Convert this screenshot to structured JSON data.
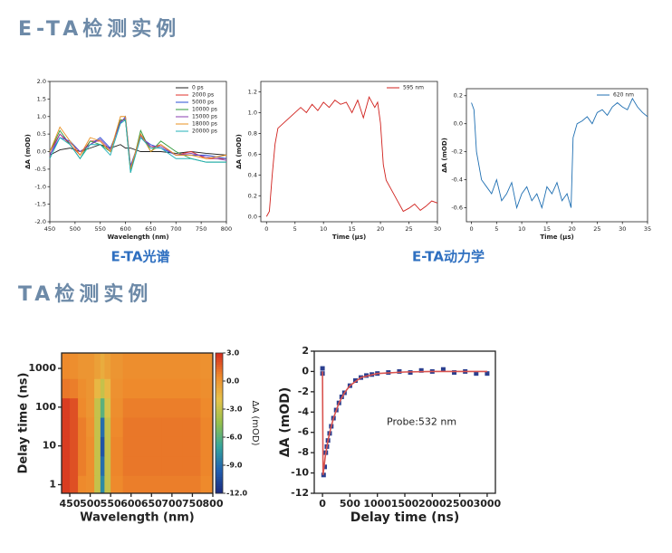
{
  "headings": [
    "E-TA检测实例",
    "TA检测实例"
  ],
  "captions": [
    "E-TA光谱",
    "E-TA动力学"
  ],
  "chart_data": [
    {
      "type": "line",
      "xlabel": "Wavelength (nm)",
      "ylabel": "ΔA (mOD)",
      "legend": "upper right",
      "xlim": [
        450,
        800
      ],
      "xticks": [
        450,
        500,
        550,
        600,
        650,
        700,
        750,
        800
      ],
      "ylim": [
        -2,
        2
      ],
      "yticks": [
        {
          "value": -2,
          "label": "-2.0"
        },
        -1.5,
        {
          "value": -1,
          "label": "-1.0"
        },
        -0.5,
        {
          "value": 0,
          "label": "0.0"
        },
        0.5,
        {
          "value": 1,
          "label": "1.0"
        },
        1.5,
        {
          "value": 2,
          "label": "2.0"
        }
      ],
      "x": [
        450,
        470,
        490,
        510,
        530,
        550,
        570,
        590,
        600,
        610,
        630,
        650,
        670,
        700,
        730,
        760,
        800
      ],
      "series": [
        {
          "name": "0 ps",
          "color": "#222222",
          "values": [
            -0.1,
            0.05,
            0.1,
            0,
            0.1,
            0.2,
            0.1,
            0.2,
            0.1,
            0.1,
            0,
            0,
            0,
            -0.05,
            0,
            -0.05,
            -0.1
          ]
        },
        {
          "name": "2000 ps",
          "color": "#e0302a",
          "values": [
            0,
            0.5,
            0.2,
            -0.1,
            0.3,
            0.3,
            0,
            0.9,
            0.9,
            -0.5,
            0.5,
            0.1,
            0.2,
            -0.1,
            0,
            -0.2,
            -0.2
          ]
        },
        {
          "name": "5000 ps",
          "color": "#2a4fd6",
          "values": [
            -0.1,
            0.4,
            0.3,
            0,
            0.2,
            0.4,
            0.1,
            0.8,
            1.0,
            -0.4,
            0.4,
            0.2,
            0.1,
            -0.1,
            -0.1,
            -0.1,
            -0.2
          ]
        },
        {
          "name": "10000 ps",
          "color": "#2e9a3a",
          "values": [
            0,
            0.6,
            0.2,
            -0.2,
            0.3,
            0.2,
            0,
            0.9,
            0.9,
            -0.6,
            0.6,
            0,
            0.3,
            0,
            -0.2,
            -0.3,
            -0.3
          ]
        },
        {
          "name": "15000 ps",
          "color": "#8a3fb0",
          "values": [
            -0.1,
            0.5,
            0.25,
            0,
            0.2,
            0.35,
            0.05,
            0.85,
            0.95,
            -0.45,
            0.45,
            0.15,
            0.15,
            -0.1,
            -0.05,
            -0.15,
            -0.25
          ]
        },
        {
          "name": "18000 ps",
          "color": "#e89020",
          "values": [
            0,
            0.7,
            0.3,
            -0.1,
            0.4,
            0.3,
            0,
            1.0,
            1.0,
            -0.5,
            0.5,
            0,
            0.2,
            -0.1,
            -0.1,
            -0.2,
            -0.1
          ]
        },
        {
          "name": "20000 ps",
          "color": "#20b0b8",
          "values": [
            -0.2,
            0.4,
            0.2,
            -0.2,
            0.2,
            0.2,
            -0.1,
            0.8,
            0.9,
            -0.6,
            0.4,
            0.1,
            0.1,
            -0.2,
            -0.2,
            -0.3,
            -0.3
          ]
        }
      ]
    },
    {
      "type": "line",
      "xlabel": "Time (μs)",
      "ylabel": "ΔA (mOD)",
      "legend": "upper right",
      "xlim": [
        -1,
        30
      ],
      "xticks": [
        0,
        5,
        10,
        15,
        20,
        25,
        30
      ],
      "ylim": [
        -0.05,
        1.3
      ],
      "yticks": [
        {
          "value": 0,
          "label": "0.0"
        },
        0.2,
        0.4,
        0.6,
        0.8,
        {
          "value": 1,
          "label": "1.0"
        },
        1.2
      ],
      "x": [
        0,
        0.5,
        1,
        1.5,
        2,
        3,
        4,
        5,
        6,
        7,
        8,
        9,
        10,
        11,
        12,
        13,
        14,
        15,
        16,
        17,
        18,
        19,
        19.5,
        20,
        20.5,
        21,
        22,
        23,
        24,
        25,
        26,
        27,
        28,
        29,
        30
      ],
      "series": [
        {
          "name": "595 nm",
          "color": "#d0201c",
          "values": [
            0,
            0.05,
            0.4,
            0.7,
            0.85,
            0.9,
            0.95,
            1.0,
            1.05,
            1.0,
            1.08,
            1.02,
            1.1,
            1.05,
            1.12,
            1.08,
            1.1,
            1.0,
            1.12,
            0.95,
            1.15,
            1.05,
            1.1,
            0.9,
            0.5,
            0.35,
            0.25,
            0.15,
            0.05,
            0.08,
            0.12,
            0.06,
            0.1,
            0.15,
            0.13
          ]
        }
      ]
    },
    {
      "type": "line",
      "xlabel": "Time (μs)",
      "ylabel": "ΔA (mOD)",
      "legend": "upper right",
      "xlim": [
        -1,
        35
      ],
      "xticks": [
        0,
        5,
        10,
        15,
        20,
        25,
        30,
        35
      ],
      "ylim": [
        -0.7,
        0.25
      ],
      "yticks": [
        -0.6,
        -0.4,
        -0.2,
        {
          "value": 0,
          "label": "0.0"
        },
        0.2
      ],
      "x": [
        0,
        0.5,
        1,
        2,
        3,
        4,
        5,
        6,
        7,
        8,
        9,
        10,
        11,
        12,
        13,
        14,
        15,
        16,
        17,
        18,
        19,
        19.8,
        20.2,
        21,
        22,
        23,
        24,
        25,
        26,
        27,
        28,
        29,
        30,
        31,
        32,
        33,
        34,
        35
      ],
      "series": [
        {
          "name": "620 nm",
          "color": "#1f6fb2",
          "values": [
            0.15,
            0.1,
            -0.2,
            -0.4,
            -0.45,
            -0.5,
            -0.4,
            -0.55,
            -0.5,
            -0.42,
            -0.6,
            -0.5,
            -0.45,
            -0.55,
            -0.5,
            -0.6,
            -0.45,
            -0.5,
            -0.42,
            -0.55,
            -0.5,
            -0.6,
            -0.1,
            0,
            0.02,
            0.05,
            0,
            0.08,
            0.1,
            0.06,
            0.12,
            0.15,
            0.12,
            0.1,
            0.18,
            0.12,
            0.08,
            0.05
          ]
        }
      ]
    },
    {
      "type": "heatmap",
      "xlabel": "Wavelength (nm)",
      "ylabel": "Delay time (ns)",
      "colorbar_label": "ΔA (mOD)",
      "xlim": [
        430,
        800
      ],
      "xticks": [
        450,
        500,
        550,
        600,
        650,
        700,
        750,
        800
      ],
      "ylim": [
        0.6,
        2500
      ],
      "ylog": true,
      "yticks": [
        1,
        10,
        100,
        1000
      ],
      "clim": [
        -12,
        3
      ],
      "cticks": [
        {
          "value": 3,
          "label": "3.0"
        },
        {
          "value": 0,
          "label": "0.0"
        },
        {
          "value": -3,
          "label": "-3.0"
        },
        {
          "value": -6,
          "label": "-6.0"
        },
        {
          "value": -9,
          "label": "-9.0"
        },
        {
          "value": -12,
          "label": "-12.0"
        }
      ],
      "colormap": [
        "#d42a1e",
        "#ee8a2c",
        "#e6c24a",
        "#94c04c",
        "#35a69c",
        "#2160b0",
        "#1b2a7e"
      ],
      "x": [
        440,
        460,
        480,
        500,
        520,
        530,
        540,
        560,
        600,
        650,
        700,
        750,
        790
      ],
      "y": [
        1,
        3,
        10,
        30,
        100,
        300,
        1000
      ],
      "values": [
        [
          2.5,
          2,
          0.5,
          0.3,
          -3,
          -8,
          -3,
          0.5,
          0.8,
          0.8,
          0.8,
          0.8,
          0.5
        ],
        [
          2.5,
          2,
          0.8,
          0.3,
          -3,
          -9,
          -3,
          0.6,
          1,
          1,
          1,
          1,
          0.6
        ],
        [
          2.5,
          2,
          0.8,
          0.3,
          -3,
          -10,
          -3,
          0.6,
          1,
          1,
          1,
          1,
          0.6
        ],
        [
          2.5,
          2,
          0.8,
          0.2,
          -3,
          -9,
          -3,
          0.5,
          1,
          1,
          1,
          1,
          0.6
        ],
        [
          2.5,
          2,
          0.5,
          0,
          -3,
          -6,
          -2.5,
          0.3,
          0.8,
          0.8,
          0.8,
          0.8,
          0.5
        ],
        [
          1,
          0.8,
          0.3,
          0,
          -1.5,
          -3,
          -1.5,
          0.2,
          0.5,
          0.5,
          0.5,
          0.5,
          0.3
        ],
        [
          0.5,
          0.3,
          0,
          0,
          -0.5,
          -1,
          -0.5,
          0,
          0.3,
          0.3,
          0.3,
          0.3,
          0.2
        ]
      ]
    },
    {
      "type": "scatter",
      "xlabel": "Delay time (ns)",
      "ylabel": "ΔA (mOD)",
      "annotation": "Probe:532 nm",
      "xlim": [
        -150,
        3150
      ],
      "xticks": [
        0,
        500,
        1000,
        1500,
        2000,
        2500,
        3000
      ],
      "ylim": [
        -12,
        2
      ],
      "yticks": [
        -12,
        -10,
        -8,
        -6,
        -4,
        -2,
        0,
        2
      ],
      "series": [
        {
          "style": "markers",
          "color": "#2b3f8f",
          "x": [
            0,
            0,
            20,
            40,
            60,
            80,
            100,
            130,
            160,
            200,
            250,
            300,
            350,
            400,
            500,
            600,
            700,
            800,
            900,
            1000,
            1200,
            1400,
            1600,
            1800,
            2000,
            2200,
            2400,
            2600,
            2800,
            3000
          ],
          "values": [
            0.3,
            -0.2,
            -10.2,
            -9.4,
            -8.0,
            -7.4,
            -6.8,
            -6.1,
            -5.4,
            -4.6,
            -3.8,
            -3.1,
            -2.5,
            -2.1,
            -1.4,
            -0.9,
            -0.6,
            -0.4,
            -0.3,
            -0.2,
            -0.1,
            0.0,
            -0.1,
            0.1,
            0.0,
            0.2,
            -0.1,
            0.0,
            -0.2,
            -0.2
          ]
        },
        {
          "style": "line",
          "color": "#d9534f",
          "x": [
            0,
            10,
            50,
            100,
            150,
            200,
            300,
            400,
            500,
            700,
            1000,
            1500,
            2000,
            3000
          ],
          "values": [
            0,
            -10.2,
            -8.4,
            -6.8,
            -5.6,
            -4.6,
            -3.1,
            -2.1,
            -1.4,
            -0.6,
            -0.2,
            -0.05,
            0,
            0
          ]
        }
      ]
    }
  ]
}
